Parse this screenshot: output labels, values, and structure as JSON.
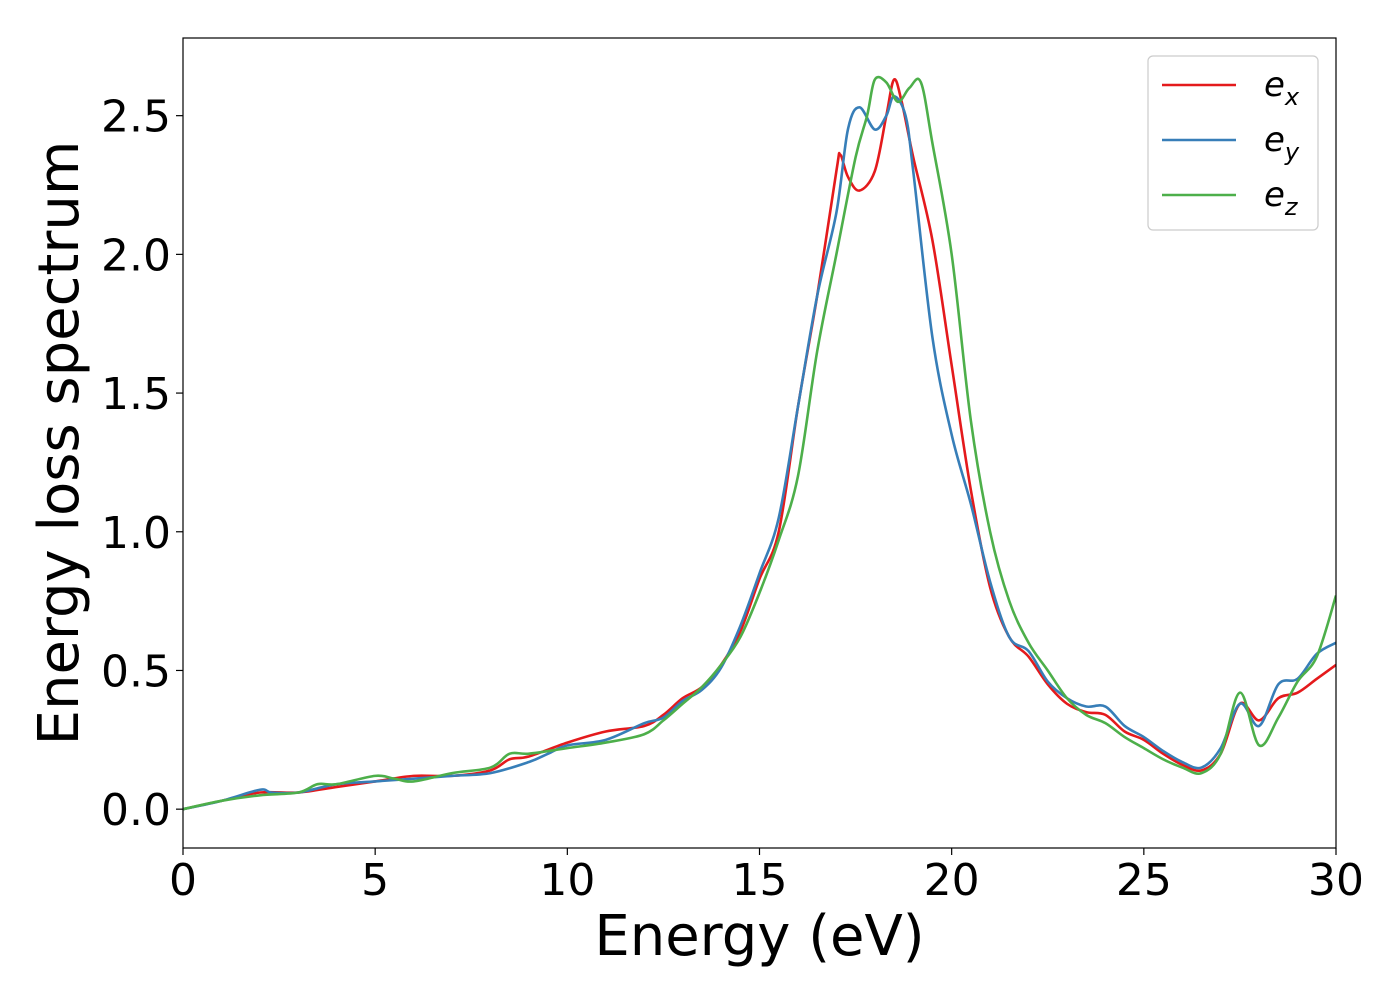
{
  "chart_data": {
    "type": "line",
    "title": "",
    "xlabel": "Energy (eV)",
    "ylabel": "Energy loss spectrum",
    "xlim": [
      0,
      30
    ],
    "ylim": [
      -0.14,
      2.78
    ],
    "xticks": [
      0,
      5,
      10,
      15,
      20,
      25,
      30
    ],
    "xtick_labels": [
      "0",
      "5",
      "10",
      "15",
      "20",
      "25",
      "30"
    ],
    "yticks": [
      0.0,
      0.5,
      1.0,
      1.5,
      2.0,
      2.5
    ],
    "ytick_labels": [
      "0.0",
      "0.5",
      "1.0",
      "1.5",
      "2.0",
      "2.5"
    ],
    "grid": false,
    "legend_position": "top-right",
    "series": [
      {
        "name": "e",
        "subscript": "x",
        "color": "#e41a1c",
        "x": [
          0,
          1,
          2,
          3,
          4,
          5,
          6,
          7,
          8,
          8.5,
          9,
          10,
          11,
          12,
          12.5,
          13,
          13.5,
          14,
          14.5,
          15,
          15.5,
          16,
          16.5,
          17,
          17.1,
          17.3,
          17.6,
          18,
          18.3,
          18.5,
          18.7,
          19,
          19.5,
          20,
          20.5,
          21,
          21.5,
          22,
          22.5,
          23,
          23.5,
          24,
          24.5,
          25,
          25.5,
          26,
          26.5,
          27,
          27.5,
          28,
          28.5,
          29,
          29.5,
          30
        ],
        "y": [
          0.0,
          0.03,
          0.06,
          0.06,
          0.08,
          0.1,
          0.12,
          0.12,
          0.14,
          0.18,
          0.19,
          0.24,
          0.28,
          0.3,
          0.34,
          0.4,
          0.44,
          0.52,
          0.64,
          0.83,
          1.0,
          1.45,
          1.85,
          2.3,
          2.36,
          2.28,
          2.23,
          2.3,
          2.5,
          2.63,
          2.55,
          2.35,
          2.05,
          1.6,
          1.15,
          0.8,
          0.62,
          0.55,
          0.45,
          0.38,
          0.35,
          0.34,
          0.28,
          0.25,
          0.2,
          0.16,
          0.14,
          0.2,
          0.38,
          0.32,
          0.4,
          0.42,
          0.47,
          0.52
        ]
      },
      {
        "name": "e",
        "subscript": "y",
        "color": "#377eb8",
        "x": [
          0,
          1,
          2,
          2.3,
          3,
          4,
          5,
          6,
          7,
          8,
          9,
          9.5,
          10,
          11,
          12,
          12.5,
          13,
          13.5,
          14,
          14.5,
          15,
          15.5,
          16,
          16.5,
          17,
          17.3,
          17.6,
          18,
          18.3,
          18.5,
          18.8,
          19,
          19.5,
          20,
          20.5,
          21,
          21.5,
          22,
          22.5,
          23,
          23.5,
          24,
          24.5,
          25,
          25.5,
          26,
          26.5,
          27,
          27.5,
          28,
          28.5,
          29,
          29.5,
          30
        ],
        "y": [
          0.0,
          0.03,
          0.07,
          0.06,
          0.06,
          0.09,
          0.1,
          0.11,
          0.12,
          0.13,
          0.17,
          0.2,
          0.23,
          0.25,
          0.31,
          0.33,
          0.39,
          0.43,
          0.51,
          0.66,
          0.85,
          1.05,
          1.45,
          1.85,
          2.15,
          2.45,
          2.53,
          2.45,
          2.5,
          2.57,
          2.5,
          2.3,
          1.7,
          1.35,
          1.1,
          0.82,
          0.62,
          0.57,
          0.46,
          0.4,
          0.37,
          0.37,
          0.3,
          0.26,
          0.21,
          0.17,
          0.15,
          0.22,
          0.38,
          0.3,
          0.45,
          0.47,
          0.56,
          0.6
        ]
      },
      {
        "name": "e",
        "subscript": "z",
        "color": "#4daf4a",
        "x": [
          0,
          1,
          2,
          3,
          3.5,
          4,
          5,
          5.5,
          6,
          7,
          8,
          8.5,
          9,
          10,
          11,
          12,
          12.5,
          13,
          13.5,
          14,
          14.5,
          15,
          15.5,
          16,
          16.5,
          17,
          17.5,
          17.8,
          18,
          18.3,
          18.6,
          18.9,
          19.2,
          19.5,
          20,
          20.5,
          21,
          21.5,
          22,
          22.5,
          23,
          23.5,
          24,
          24.5,
          25,
          25.5,
          26,
          26.5,
          27,
          27.5,
          28,
          28.5,
          29,
          29.5,
          30
        ],
        "y": [
          0.0,
          0.03,
          0.05,
          0.06,
          0.09,
          0.09,
          0.12,
          0.11,
          0.1,
          0.13,
          0.15,
          0.2,
          0.2,
          0.22,
          0.24,
          0.27,
          0.32,
          0.38,
          0.44,
          0.52,
          0.62,
          0.78,
          0.97,
          1.2,
          1.65,
          2.0,
          2.35,
          2.5,
          2.63,
          2.62,
          2.55,
          2.6,
          2.62,
          2.4,
          2.0,
          1.4,
          1.0,
          0.75,
          0.6,
          0.5,
          0.4,
          0.34,
          0.31,
          0.26,
          0.22,
          0.18,
          0.15,
          0.13,
          0.2,
          0.42,
          0.23,
          0.33,
          0.46,
          0.55,
          0.77
        ]
      }
    ]
  }
}
